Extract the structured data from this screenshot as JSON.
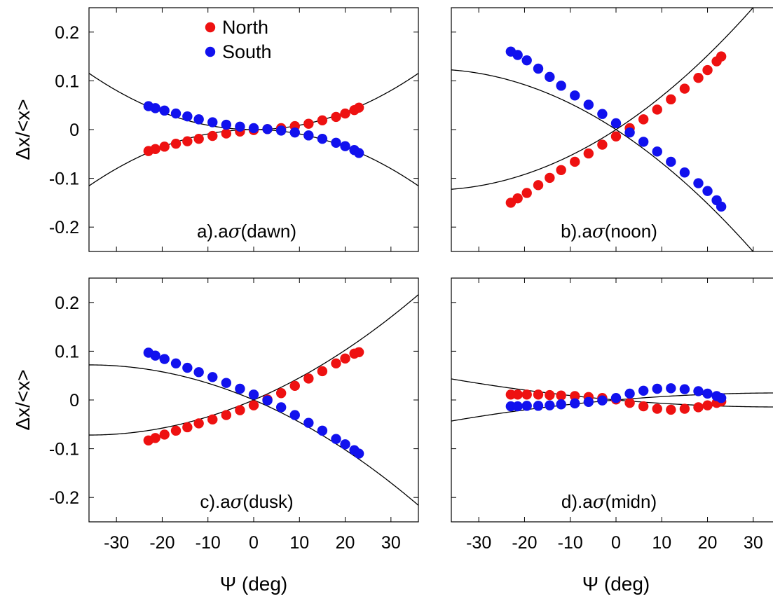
{
  "colors": {
    "north": "#ee1111",
    "south": "#1111ee",
    "curve": "#000000",
    "frame": "#000000"
  },
  "chart_data": [
    {
      "type": "scatter",
      "panel_label": {
        "prefix": "a).a",
        "sigma": "σ",
        "suffix": "(dawn)"
      },
      "ylabel": "Δx/<x>",
      "xlabel": "",
      "xlim": [
        -36,
        36
      ],
      "ylim": [
        -0.25,
        0.25
      ],
      "xticks": [
        -30,
        -20,
        -10,
        0,
        10,
        20,
        30
      ],
      "yticks": [
        -0.2,
        -0.1,
        0,
        0.1,
        0.2
      ],
      "ytick_labels": [
        "-0.2",
        "-0.1",
        "0",
        "0.1",
        "0.2"
      ],
      "show_xticklabels": false,
      "show_yticklabels": true,
      "legend": {
        "position": "top-center",
        "entries": [
          "North",
          "South"
        ]
      },
      "series": [
        {
          "name": "North",
          "color": "#ee1111",
          "x": [
            -23,
            -21.5,
            -19.5,
            -17,
            -14.5,
            -12,
            -9,
            -6,
            -3,
            0,
            3,
            6,
            9,
            12,
            15,
            18,
            20,
            22,
            23
          ],
          "y": [
            -0.044,
            -0.04,
            -0.035,
            -0.029,
            -0.024,
            -0.019,
            -0.013,
            -0.008,
            -0.004,
            -0.001,
            0.001,
            0.003,
            0.007,
            0.012,
            0.019,
            0.026,
            0.033,
            0.04,
            0.045
          ]
        },
        {
          "name": "South",
          "color": "#1111ee",
          "x": [
            -23,
            -21.5,
            -19.5,
            -17,
            -14.5,
            -12,
            -9,
            -6,
            -3,
            0,
            3,
            6,
            9,
            12,
            15,
            18,
            20,
            22,
            23
          ],
          "y": [
            0.048,
            0.044,
            0.039,
            0.033,
            0.027,
            0.021,
            0.015,
            0.01,
            0.006,
            0.003,
            0.001,
            -0.002,
            -0.006,
            -0.012,
            -0.019,
            -0.027,
            -0.034,
            -0.042,
            -0.048
          ]
        }
      ],
      "curves": [
        {
          "a": 0,
          "b": 0,
          "c": 8.91e-05
        },
        {
          "a": 0,
          "b": 0,
          "c": -8.91e-05
        }
      ]
    },
    {
      "type": "scatter",
      "panel_label": {
        "prefix": "b).a",
        "sigma": "σ",
        "suffix": "(noon)"
      },
      "ylabel": "",
      "xlabel": "",
      "xlim": [
        -36,
        36
      ],
      "ylim": [
        -0.25,
        0.25
      ],
      "xticks": [
        -30,
        -20,
        -10,
        0,
        10,
        20,
        30
      ],
      "yticks": [
        -0.2,
        -0.1,
        0,
        0.1,
        0.2
      ],
      "ytick_labels": [],
      "show_xticklabels": false,
      "show_yticklabels": false,
      "series": [
        {
          "name": "North",
          "color": "#ee1111",
          "x": [
            -23,
            -21.5,
            -19.5,
            -17,
            -14.5,
            -12,
            -9,
            -6,
            -3,
            0,
            3,
            6,
            9,
            12,
            15,
            18,
            20,
            22,
            23
          ],
          "y": [
            -0.15,
            -0.141,
            -0.13,
            -0.114,
            -0.099,
            -0.083,
            -0.066,
            -0.049,
            -0.031,
            -0.014,
            0.003,
            0.021,
            0.041,
            0.062,
            0.084,
            0.106,
            0.122,
            0.14,
            0.15
          ]
        },
        {
          "name": "South",
          "color": "#1111ee",
          "x": [
            -23,
            -21.5,
            -19.5,
            -17,
            -14.5,
            -12,
            -9,
            -6,
            -3,
            0,
            3,
            6,
            9,
            12,
            15,
            18,
            20,
            22,
            23
          ],
          "y": [
            0.16,
            0.153,
            0.142,
            0.125,
            0.108,
            0.09,
            0.07,
            0.051,
            0.032,
            0.013,
            -0.006,
            -0.025,
            -0.045,
            -0.066,
            -0.088,
            -0.11,
            -0.126,
            -0.145,
            -0.158
          ]
        }
      ],
      "curves": [
        {
          "a": 0,
          "b": 0.0061,
          "c": 7.5e-05
        },
        {
          "a": 0,
          "b": -0.0061,
          "c": -7.5e-05
        }
      ]
    },
    {
      "type": "scatter",
      "panel_label": {
        "prefix": "c).a",
        "sigma": "σ",
        "suffix": "(dusk)"
      },
      "ylabel": "Δx/<x>",
      "xlabel": "Ψ (deg)",
      "xlim": [
        -36,
        36
      ],
      "ylim": [
        -0.25,
        0.25
      ],
      "xticks": [
        -30,
        -20,
        -10,
        0,
        10,
        20,
        30
      ],
      "xtick_labels": [
        "-30",
        "-20",
        "-10",
        "0",
        "10",
        "20",
        "30"
      ],
      "yticks": [
        -0.2,
        -0.1,
        0,
        0.1,
        0.2
      ],
      "ytick_labels": [
        "-0.2",
        "-0.1",
        "0",
        "0.1",
        "0.2"
      ],
      "show_xticklabels": true,
      "show_yticklabels": true,
      "series": [
        {
          "name": "North",
          "color": "#ee1111",
          "x": [
            -23,
            -21.5,
            -19.5,
            -17,
            -14.5,
            -12,
            -9,
            -6,
            -3,
            0,
            3,
            6,
            9,
            12,
            15,
            18,
            20,
            22,
            23
          ],
          "y": [
            -0.083,
            -0.078,
            -0.071,
            -0.063,
            -0.056,
            -0.048,
            -0.04,
            -0.031,
            -0.021,
            -0.011,
            0.001,
            0.014,
            0.029,
            0.044,
            0.059,
            0.075,
            0.085,
            0.095,
            0.098
          ]
        },
        {
          "name": "South",
          "color": "#1111ee",
          "x": [
            -23,
            -21.5,
            -19.5,
            -17,
            -14.5,
            -12,
            -9,
            -6,
            -3,
            0,
            3,
            6,
            9,
            12,
            15,
            18,
            20,
            22,
            23
          ],
          "y": [
            0.097,
            0.091,
            0.084,
            0.075,
            0.066,
            0.057,
            0.047,
            0.035,
            0.023,
            0.011,
            -0.001,
            -0.015,
            -0.031,
            -0.047,
            -0.063,
            -0.08,
            -0.091,
            -0.103,
            -0.11
          ]
        }
      ],
      "curves": [
        {
          "a": 0,
          "b": 0.004,
          "c": 5.56e-05
        },
        {
          "a": 0,
          "b": -0.004,
          "c": -5.56e-05
        }
      ]
    },
    {
      "type": "scatter",
      "panel_label": {
        "prefix": "d).a",
        "sigma": "σ",
        "suffix": "(midn)"
      },
      "ylabel": "",
      "xlabel": "Ψ (deg)",
      "xlim": [
        -36,
        36
      ],
      "ylim": [
        -0.25,
        0.25
      ],
      "xticks": [
        -30,
        -20,
        -10,
        0,
        10,
        20,
        30
      ],
      "xtick_labels": [
        "-30",
        "-20",
        "-10",
        "0",
        "10",
        "20",
        "30"
      ],
      "yticks": [
        -0.2,
        -0.1,
        0,
        0.1,
        0.2
      ],
      "ytick_labels": [],
      "show_xticklabels": true,
      "show_yticklabels": false,
      "series": [
        {
          "name": "North",
          "color": "#ee1111",
          "x": [
            -23,
            -21.5,
            -19.5,
            -17,
            -14.5,
            -12,
            -9,
            -6,
            -3,
            0,
            3,
            6,
            9,
            12,
            15,
            18,
            20,
            22,
            23
          ],
          "y": [
            0.011,
            0.011,
            0.011,
            0.011,
            0.01,
            0.009,
            0.008,
            0.006,
            0.004,
            0.001,
            -0.006,
            -0.013,
            -0.018,
            -0.02,
            -0.018,
            -0.015,
            -0.011,
            -0.006,
            -0.003
          ]
        },
        {
          "name": "South",
          "color": "#1111ee",
          "x": [
            -23,
            -21.5,
            -19.5,
            -17,
            -14.5,
            -12,
            -9,
            -6,
            -3,
            0,
            3,
            6,
            9,
            12,
            15,
            18,
            20,
            22,
            23
          ],
          "y": [
            -0.013,
            -0.013,
            -0.012,
            -0.012,
            -0.011,
            -0.009,
            -0.007,
            -0.004,
            -0.001,
            0.004,
            0.013,
            0.019,
            0.023,
            0.024,
            0.022,
            0.018,
            0.013,
            0.008,
            0.004
          ]
        }
      ],
      "curves": [
        {
          "a": 0,
          "b": -0.0008,
          "c": 1.11e-05
        },
        {
          "a": 0,
          "b": 0.0008,
          "c": -1.11e-05
        }
      ]
    }
  ]
}
